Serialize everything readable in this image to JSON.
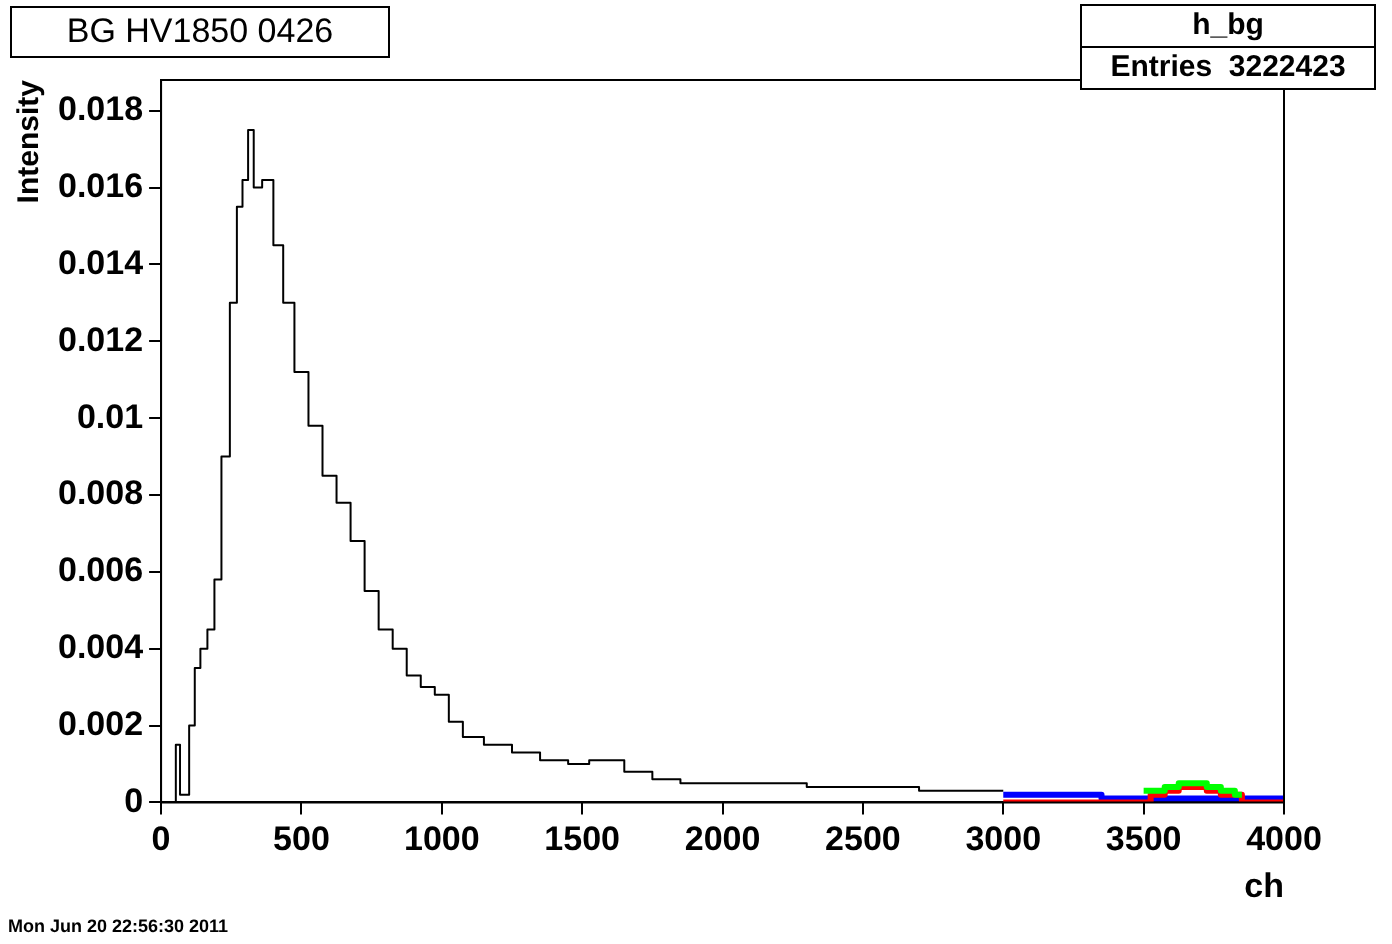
{
  "chart_data": {
    "type": "step",
    "title": "BG HV1850 0426",
    "xlabel": "ch",
    "ylabel": "Intensity",
    "annotations": [
      "h_bg",
      "Entries  3222423",
      "Mon Jun 20 22:56:30 2011"
    ],
    "xlim": [
      0,
      4000
    ],
    "xticks": [
      0,
      500,
      1000,
      1500,
      2000,
      2500,
      3000,
      3500,
      4000
    ],
    "ylim": [
      0,
      0.0188
    ],
    "yticks": [
      0,
      0.002,
      0.004,
      0.006,
      0.008,
      0.01,
      0.012,
      0.014,
      0.016,
      0.018
    ],
    "grid": false,
    "legend": false,
    "series": [
      {
        "color": "#000000",
        "x": [
          0,
          50,
          55,
          65,
          70,
          90,
          110,
          130,
          150,
          180,
          200,
          230,
          260,
          280,
          300,
          320,
          340,
          380,
          420,
          450,
          500,
          550,
          600,
          650,
          700,
          750,
          800,
          850,
          900,
          950,
          1000,
          1050,
          1100,
          1200,
          1300,
          1400,
          1500,
          1550,
          1600,
          1700,
          1800,
          1900,
          2000,
          2200,
          2400,
          2600,
          2800,
          3000
        ],
        "values": [
          0,
          0,
          0.0015,
          0.0015,
          0.0002,
          0.0002,
          0.002,
          0.0035,
          0.004,
          0.0045,
          0.0058,
          0.009,
          0.013,
          0.0155,
          0.0162,
          0.0175,
          0.016,
          0.0162,
          0.0145,
          0.013,
          0.0112,
          0.0098,
          0.0085,
          0.0078,
          0.0068,
          0.0055,
          0.0045,
          0.004,
          0.0033,
          0.003,
          0.0028,
          0.0021,
          0.0017,
          0.0015,
          0.0013,
          0.0011,
          0.001,
          0.0011,
          0.0011,
          0.0008,
          0.0006,
          0.0005,
          0.0005,
          0.0005,
          0.0004,
          0.0004,
          0.0003,
          0.0003
        ]
      },
      {
        "color": "#00ff00",
        "x": [
          3500,
          3550,
          3600,
          3650,
          3700,
          3750,
          3800,
          3850
        ],
        "values": [
          0.0003,
          0.0003,
          0.0004,
          0.0005,
          0.0005,
          0.0004,
          0.0003,
          0.0002
        ]
      },
      {
        "color": "#ff0000",
        "x": [
          3000,
          3500,
          3550,
          3600,
          3650,
          3700,
          3750,
          3800,
          3900,
          4000
        ],
        "values": [
          0,
          0,
          0.0002,
          0.0003,
          0.0004,
          0.0004,
          0.0003,
          0.0002,
          0,
          0
        ]
      },
      {
        "color": "#0000ff",
        "x": [
          3000,
          3200,
          3500,
          3750,
          4000
        ],
        "values": [
          0.0002,
          0.0002,
          0.0001,
          0.0001,
          0.0001
        ]
      }
    ]
  }
}
